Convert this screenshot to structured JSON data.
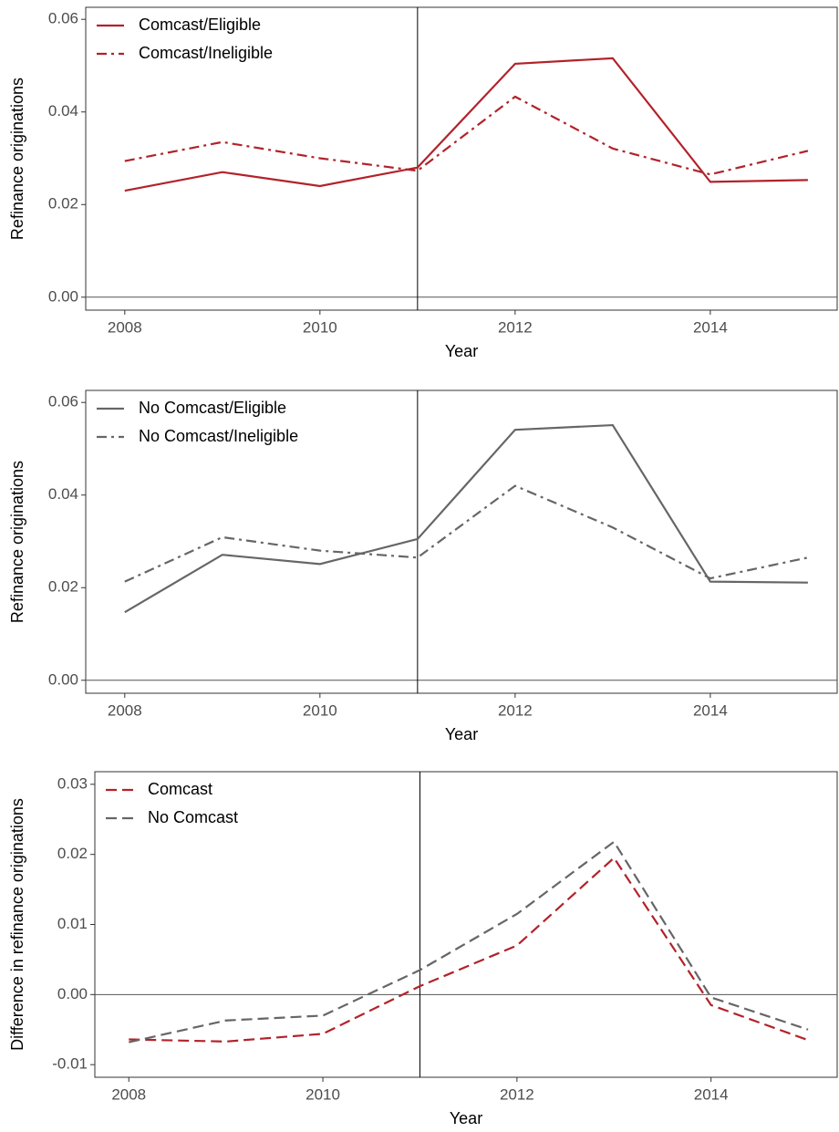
{
  "chart_data": [
    {
      "type": "line",
      "x_label": "Year",
      "y_label": "Refinance originations",
      "x": [
        2008,
        2009,
        2010,
        2011,
        2012,
        2013,
        2014,
        2015
      ],
      "series": [
        {
          "name": "Comcast/Eligible",
          "color": "#b2222a",
          "style": "solid",
          "values": [
            0.023,
            0.027,
            0.024,
            0.028,
            0.0504,
            0.0516,
            0.0249,
            0.0253
          ]
        },
        {
          "name": "Comcast/Ineligible",
          "color": "#b2222a",
          "style": "dashdot",
          "values": [
            0.0294,
            0.0335,
            0.03,
            0.0273,
            0.0433,
            0.0321,
            0.0265,
            0.0316
          ]
        }
      ],
      "xlim": [
        2007.6,
        2015.3
      ],
      "xticks": [
        2008,
        2010,
        2012,
        2014
      ],
      "ylim": [
        -0.0028,
        0.0626
      ],
      "yticks": [
        {
          "value": 0,
          "label": "0.00"
        },
        0.02,
        0.04,
        0.06
      ],
      "vline": 2011,
      "hline": 0,
      "grid": false,
      "legend": "top-left"
    },
    {
      "type": "line",
      "x_label": "Year",
      "y_label": "Refinance originations",
      "x": [
        2008,
        2009,
        2010,
        2011,
        2012,
        2013,
        2014,
        2015
      ],
      "series": [
        {
          "name": "No Comcast/Eligible",
          "color": "#666666",
          "style": "solid",
          "values": [
            0.0147,
            0.0271,
            0.0251,
            0.0305,
            0.0541,
            0.0551,
            0.0213,
            0.0211
          ]
        },
        {
          "name": "No Comcast/Ineligible",
          "color": "#666666",
          "style": "dashdot",
          "values": [
            0.0213,
            0.0309,
            0.028,
            0.0265,
            0.042,
            0.033,
            0.022,
            0.0265
          ]
        }
      ],
      "xlim": [
        2007.6,
        2015.3
      ],
      "xticks": [
        2008,
        2010,
        2012,
        2014
      ],
      "ylim": [
        -0.0028,
        0.0626
      ],
      "yticks": [
        {
          "value": 0,
          "label": "0.00"
        },
        0.02,
        0.04,
        0.06
      ],
      "vline": 2011,
      "hline": 0,
      "grid": false,
      "legend": "top-left"
    },
    {
      "type": "line",
      "x_label": "Year",
      "y_label": "Difference in refinance originations",
      "x": [
        2008,
        2009,
        2010,
        2011,
        2012,
        2013,
        2014,
        2015
      ],
      "series": [
        {
          "name": "Comcast",
          "color": "#b2222a",
          "style": "dashed",
          "values": [
            -0.0064,
            -0.0067,
            -0.0056,
            0.0012,
            0.007,
            0.0195,
            -0.0015,
            -0.0065
          ]
        },
        {
          "name": "No Comcast",
          "color": "#666666",
          "style": "dashed",
          "values": [
            -0.0068,
            -0.0037,
            -0.003,
            0.0035,
            0.0115,
            0.0218,
            -0.0004,
            -0.005
          ]
        }
      ],
      "xlim": [
        2007.65,
        2015.3
      ],
      "xticks": [
        2008,
        2010,
        2012,
        2014
      ],
      "ylim": [
        -0.0118,
        0.0318
      ],
      "yticks": [
        -0.01,
        {
          "value": 0,
          "label": "0.00"
        },
        0.01,
        0.02,
        0.03
      ],
      "vline": 2011,
      "hline": 0,
      "grid": false,
      "legend": "top-left"
    }
  ]
}
